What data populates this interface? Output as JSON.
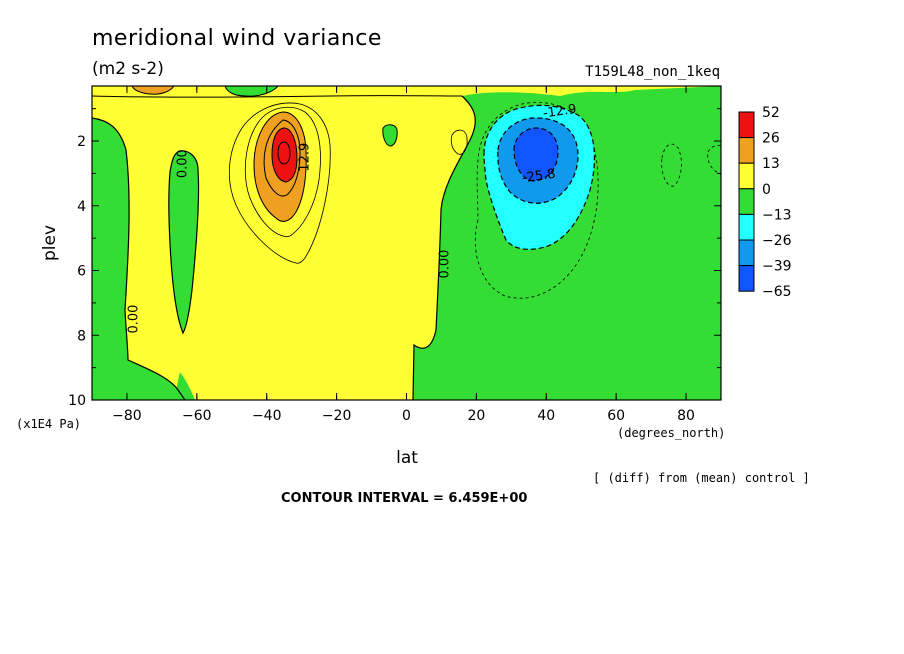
{
  "chart_data": {
    "type": "heatmap",
    "subtype": "filled latitude-pressure contour",
    "title": "meridional wind variance",
    "units": "(m2 s-2)",
    "experiment": "T159L48_non_1keq",
    "xlabel": "lat",
    "x_units": "(degrees_north)",
    "ylabel": "plev",
    "y_units": "(x1E4 Pa)",
    "xlim": [
      -90,
      90
    ],
    "ylim": [
      10,
      0.3
    ],
    "y_inverted": true,
    "x_ticks": [
      -80,
      -60,
      -40,
      -20,
      0,
      20,
      40,
      60,
      80
    ],
    "x_tick_labels": [
      "−80",
      "−60",
      "−40",
      "−20",
      "0",
      "20",
      "40",
      "60",
      "80"
    ],
    "y_ticks": [
      2,
      4,
      6,
      8,
      10
    ],
    "y_tick_labels": [
      "2",
      "4",
      "6",
      "8",
      "10"
    ],
    "contour_interval_text": "CONTOUR INTERVAL = 6.459E+00",
    "note": "[ (diff) from (mean) control ]",
    "contour_labels": [
      {
        "text": "0.00",
        "lat": -77,
        "plev": 7.5
      },
      {
        "text": "0.00",
        "lat": -63,
        "plev": 2.7
      },
      {
        "text": "12.9",
        "lat": -28,
        "plev": 2.5
      },
      {
        "text": "0.00",
        "lat": 12,
        "plev": 5.8
      },
      {
        "text": "-12.9",
        "lat": 44,
        "plev": 1.2
      },
      {
        "text": "-25.8",
        "lat": 38,
        "plev": 3.2
      }
    ],
    "levels": [
      {
        "label": "52",
        "color": "#ee1111"
      },
      {
        "label": "26",
        "color": "#f0a020"
      },
      {
        "label": "13",
        "color": "#ffff33"
      },
      {
        "label": "0",
        "color": "#33dd33"
      },
      {
        "label": "−13",
        "color": "#22ffff"
      },
      {
        "label": "−26",
        "color": "#1199ee"
      },
      {
        "label": "−39",
        "color": "#1155ff"
      },
      {
        "label": "−65",
        "color": ""
      }
    ],
    "features": [
      {
        "sign": "positive",
        "lat": -35,
        "plev": 2.3,
        "peak": 45
      },
      {
        "sign": "negative",
        "lat": 36,
        "plev": 2.4,
        "peak": -45
      }
    ],
    "colors": {
      "red": "#ee1111",
      "orange": "#f0a020",
      "yellow": "#ffff33",
      "green": "#33dd33",
      "cyan": "#22ffff",
      "lightblue": "#1199ee",
      "blue": "#1155ff"
    }
  }
}
